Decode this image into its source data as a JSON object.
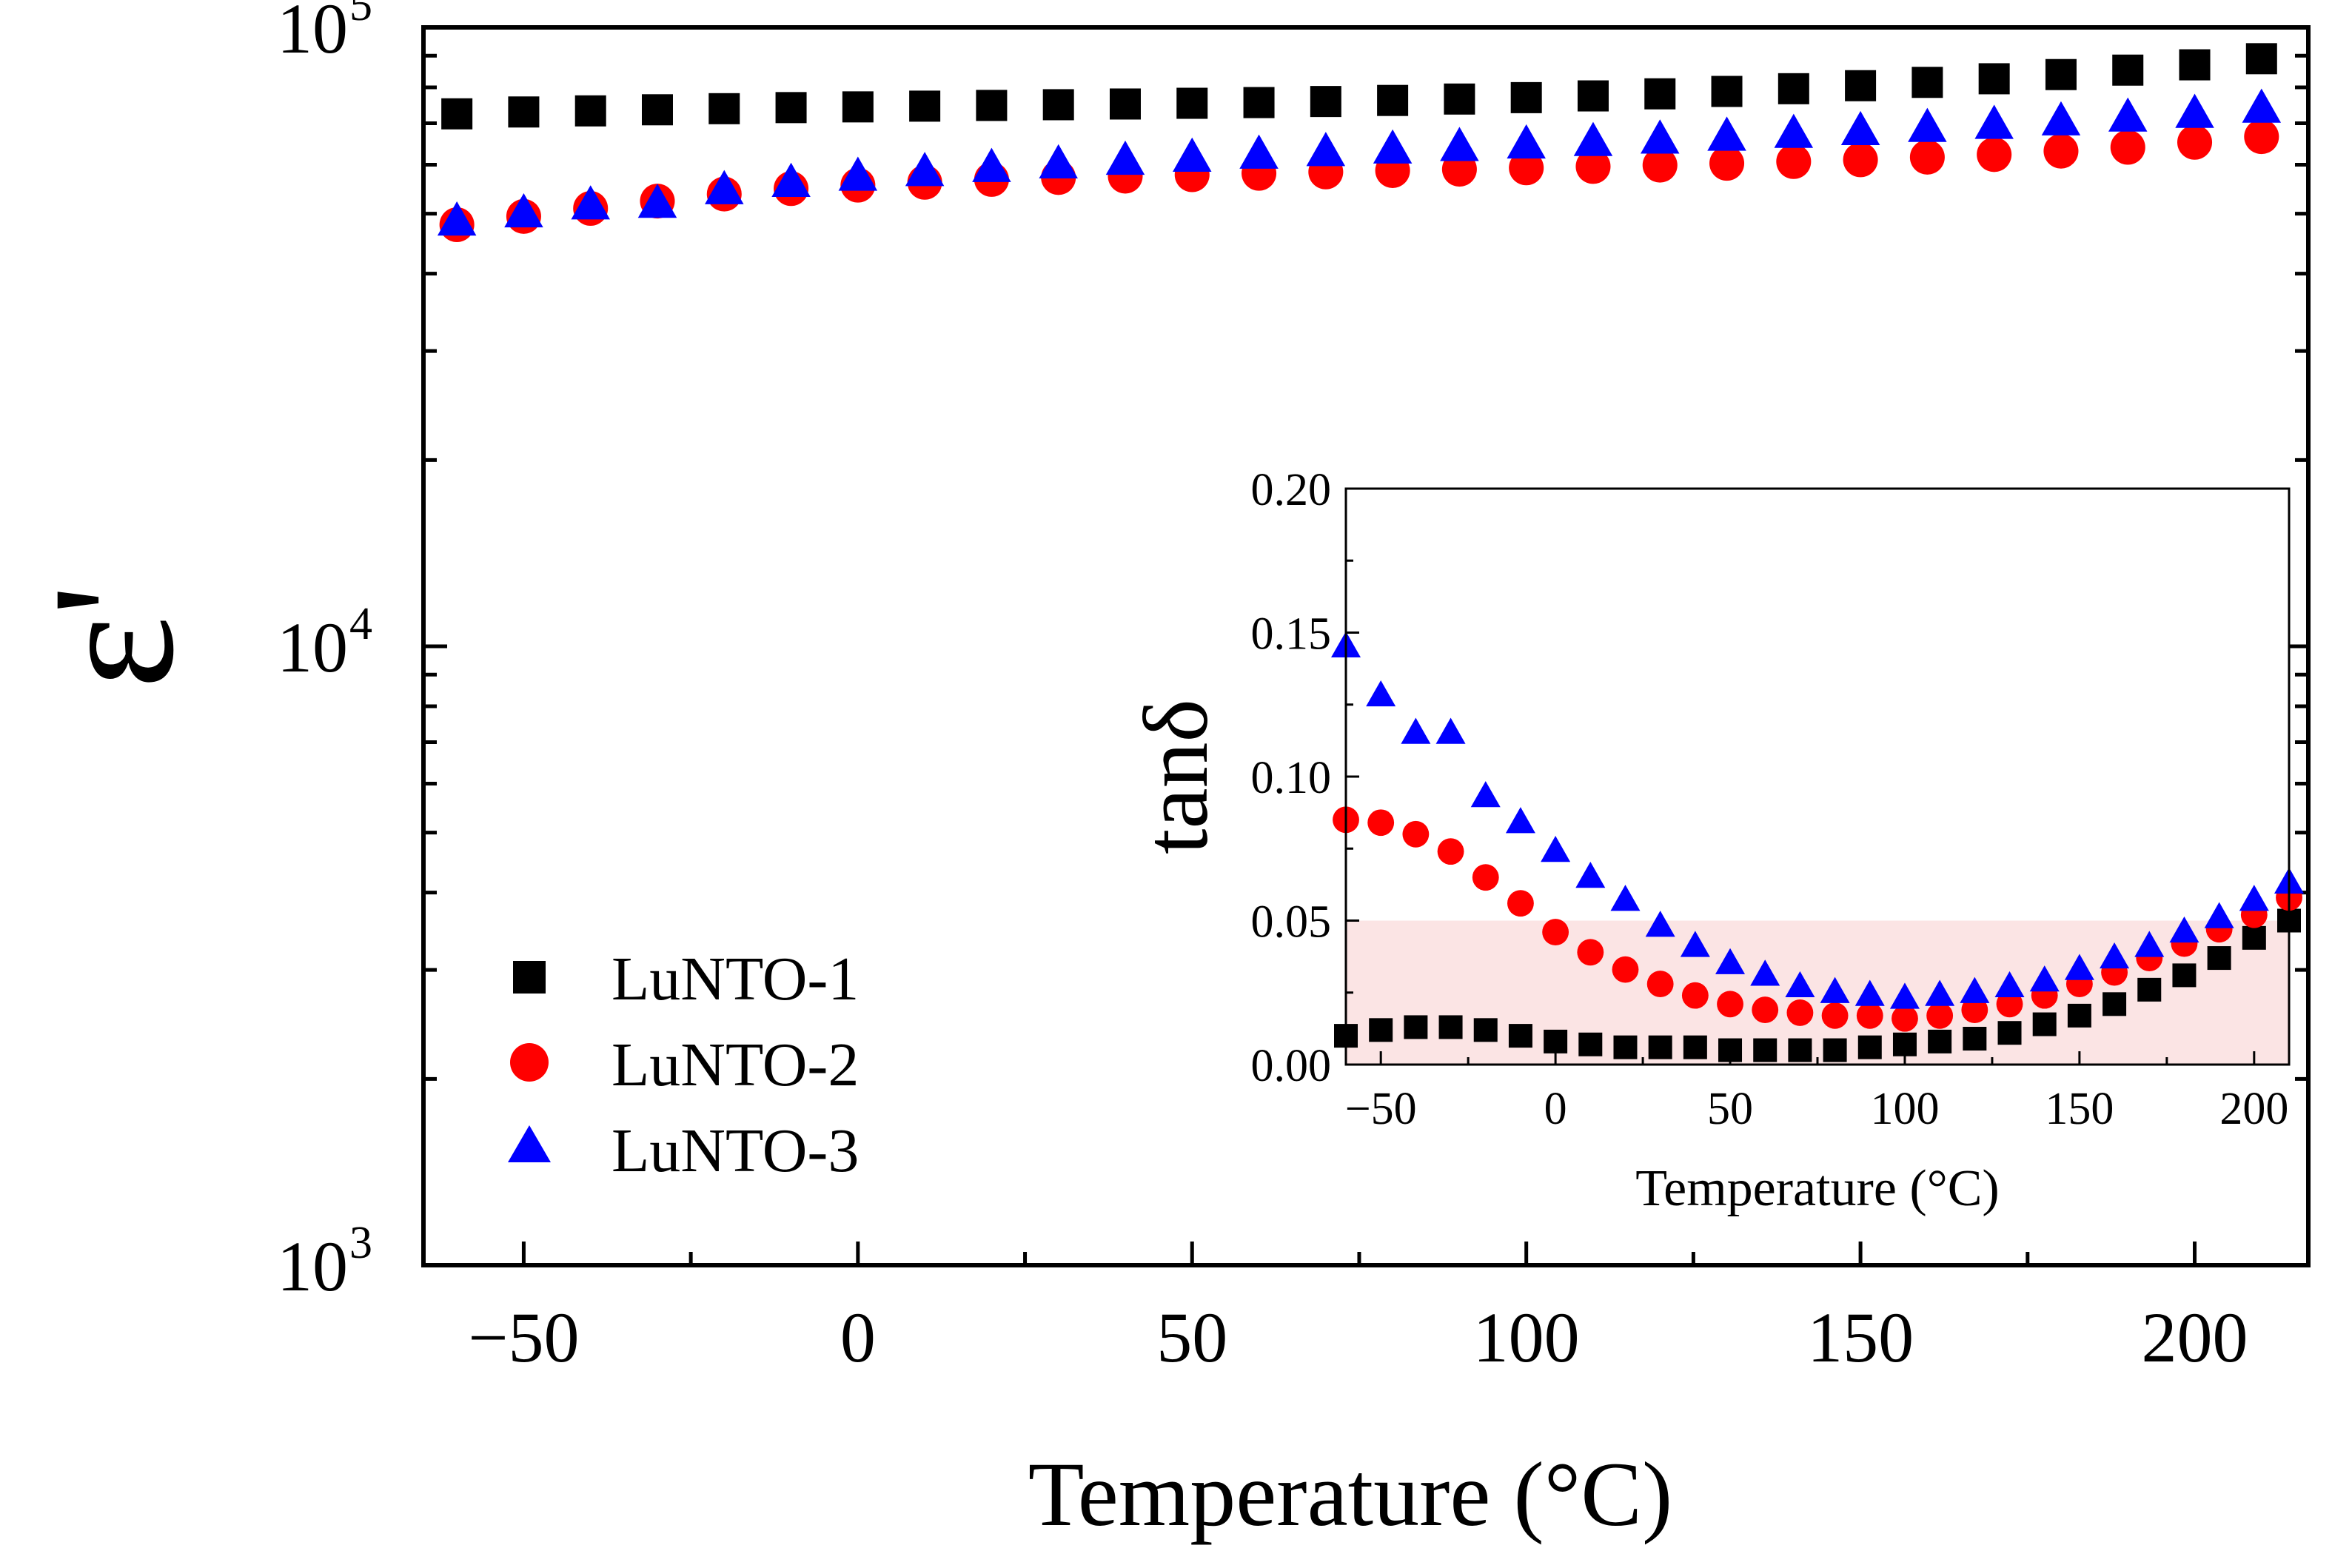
{
  "chart_data": [
    {
      "id": "main",
      "type": "scatter",
      "title": "",
      "xlabel": "Temperature (°C)",
      "ylabel": "ε'",
      "xlim": [
        -65,
        217
      ],
      "ylim": [
        1000,
        100000
      ],
      "yscale": "log",
      "grid": false,
      "legend": "bottom-left",
      "xticks": [
        -50,
        0,
        50,
        100,
        150,
        200
      ],
      "xtick_labels": [
        "−50",
        "0",
        "50",
        "100",
        "150",
        "200"
      ],
      "yticks": [
        {
          "value": 1000,
          "base": "10",
          "exp": "3"
        },
        {
          "value": 10000,
          "base": "10",
          "exp": "4"
        },
        {
          "value": 100000,
          "base": "10",
          "exp": "5"
        }
      ],
      "x": [
        -60,
        -50,
        -40,
        -30,
        -20,
        -10,
        0,
        10,
        20,
        30,
        40,
        50,
        60,
        70,
        80,
        90,
        100,
        110,
        120,
        130,
        140,
        150,
        160,
        170,
        180,
        190,
        200,
        210
      ],
      "series": [
        {
          "name": "LuNTO-1",
          "marker": "square",
          "color": "#000000",
          "values": [
            72500,
            73000,
            73300,
            73600,
            73900,
            74200,
            74400,
            74600,
            74800,
            75000,
            75200,
            75400,
            75600,
            75900,
            76200,
            76600,
            77000,
            77500,
            78100,
            78800,
            79600,
            80500,
            81500,
            82600,
            83900,
            85300,
            87000,
            89000
          ]
        },
        {
          "name": "LuNTO-2",
          "marker": "circle",
          "color": "#ff0000",
          "values": [
            48000,
            49500,
            51000,
            52400,
            53800,
            54900,
            55600,
            56200,
            56800,
            57200,
            57500,
            57800,
            58100,
            58400,
            58700,
            59000,
            59300,
            59600,
            59900,
            60300,
            60700,
            61100,
            61700,
            62300,
            63100,
            64000,
            65200,
            66600
          ]
        },
        {
          "name": "LuNTO-3",
          "marker": "triangle",
          "color": "#0000ff",
          "values": [
            48500,
            50000,
            51500,
            51800,
            54500,
            56000,
            57300,
            58300,
            59200,
            60000,
            60800,
            61500,
            62200,
            62800,
            63400,
            64000,
            64600,
            65200,
            65800,
            66500,
            67200,
            67900,
            68700,
            69500,
            70400,
            71400,
            72400,
            73800
          ]
        }
      ]
    },
    {
      "id": "inset",
      "type": "scatter",
      "title": "",
      "xlabel": "Temperature (°C)",
      "ylabel": "tanδ",
      "xlim": [
        -60,
        210
      ],
      "ylim": [
        0,
        0.2
      ],
      "grid": false,
      "xticks": [
        -50,
        0,
        50,
        100,
        150,
        200
      ],
      "xtick_labels": [
        "−50",
        "0",
        "50",
        "100",
        "150",
        "200"
      ],
      "yticks": [
        0,
        0.05,
        0.1,
        0.15,
        0.2
      ],
      "ytick_labels": [
        "0.00",
        "0.05",
        "0.10",
        "0.15",
        "0.20"
      ],
      "shaded_band": {
        "from": 0,
        "to": 0.05,
        "color": "#fbe4e4"
      },
      "x": [
        -60,
        -50,
        -40,
        -30,
        -20,
        -10,
        0,
        10,
        20,
        30,
        40,
        50,
        60,
        70,
        80,
        90,
        100,
        110,
        120,
        130,
        140,
        150,
        160,
        170,
        180,
        190,
        200,
        210
      ],
      "series": [
        {
          "name": "LuNTO-1",
          "marker": "square",
          "color": "#000000",
          "values": [
            0.01,
            0.012,
            0.013,
            0.013,
            0.012,
            0.01,
            0.008,
            0.007,
            0.006,
            0.006,
            0.006,
            0.005,
            0.005,
            0.005,
            0.005,
            0.006,
            0.007,
            0.008,
            0.009,
            0.011,
            0.014,
            0.017,
            0.021,
            0.026,
            0.031,
            0.037,
            0.044,
            0.05
          ]
        },
        {
          "name": "LuNTO-2",
          "marker": "circle",
          "color": "#ff0000",
          "values": [
            0.085,
            0.084,
            0.08,
            0.074,
            0.065,
            0.056,
            0.046,
            0.039,
            0.033,
            0.028,
            0.024,
            0.021,
            0.019,
            0.018,
            0.017,
            0.017,
            0.016,
            0.017,
            0.019,
            0.021,
            0.024,
            0.028,
            0.032,
            0.037,
            0.042,
            0.047,
            0.052,
            0.058
          ]
        },
        {
          "name": "LuNTO-3",
          "marker": "triangle",
          "color": "#0000ff",
          "values": [
            0.145,
            0.128,
            0.115,
            0.115,
            0.093,
            0.084,
            0.074,
            0.065,
            0.057,
            0.048,
            0.041,
            0.035,
            0.031,
            0.027,
            0.025,
            0.024,
            0.023,
            0.024,
            0.025,
            0.027,
            0.029,
            0.033,
            0.037,
            0.041,
            0.046,
            0.051,
            0.057,
            0.063
          ]
        }
      ]
    }
  ]
}
